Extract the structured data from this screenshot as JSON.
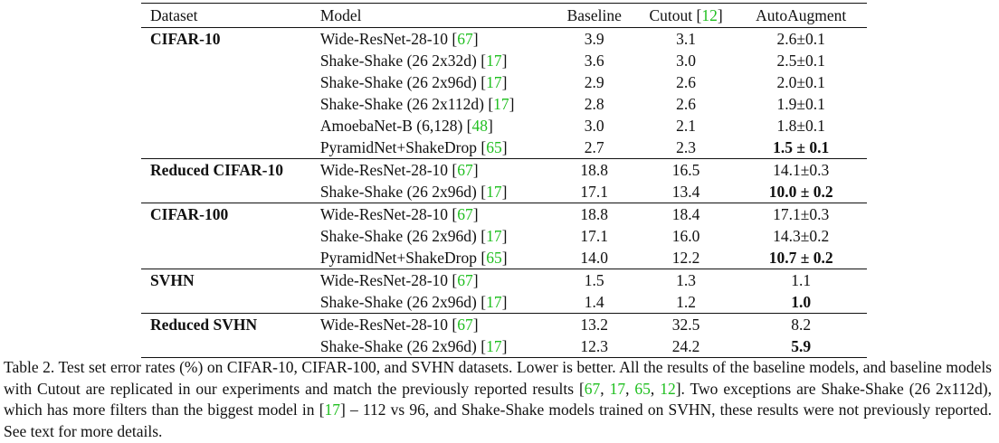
{
  "table": {
    "headers": {
      "dataset": "Dataset",
      "model": "Model",
      "baseline": "Baseline",
      "cutout": "Cutout [",
      "cutout_ref": "12",
      "cutout_close": "]",
      "autoaugment": "AutoAugment"
    },
    "groups": [
      {
        "dataset": "CIFAR-10",
        "rows": [
          {
            "model": "Wide-ResNet-28-10 [",
            "ref": "67",
            "close": "]",
            "baseline": "3.9",
            "cutout": "3.1",
            "auto": "2.6±0.1",
            "bold": false
          },
          {
            "model": "Shake-Shake (26 2x32d) [",
            "ref": "17",
            "close": "]",
            "baseline": "3.6",
            "cutout": "3.0",
            "auto": "2.5±0.1",
            "bold": false
          },
          {
            "model": "Shake-Shake (26 2x96d) [",
            "ref": "17",
            "close": "]",
            "baseline": "2.9",
            "cutout": "2.6",
            "auto": "2.0±0.1",
            "bold": false
          },
          {
            "model": "Shake-Shake (26 2x112d) [",
            "ref": "17",
            "close": "]",
            "baseline": "2.8",
            "cutout": "2.6",
            "auto": "1.9±0.1",
            "bold": false
          },
          {
            "model": "AmoebaNet-B (6,128) [",
            "ref": "48",
            "close": "]",
            "baseline": "3.0",
            "cutout": "2.1",
            "auto": "1.8±0.1",
            "bold": false
          },
          {
            "model": "PyramidNet+ShakeDrop [",
            "ref": "65",
            "close": "]",
            "baseline": "2.7",
            "cutout": "2.3",
            "auto": "1.5 ± 0.1",
            "bold": true
          }
        ]
      },
      {
        "dataset": "Reduced CIFAR-10",
        "rows": [
          {
            "model": "Wide-ResNet-28-10 [",
            "ref": "67",
            "close": "]",
            "baseline": "18.8",
            "cutout": "16.5",
            "auto": "14.1±0.3",
            "bold": false
          },
          {
            "model": "Shake-Shake (26 2x96d) [",
            "ref": "17",
            "close": "]",
            "baseline": "17.1",
            "cutout": "13.4",
            "auto": "10.0 ± 0.2",
            "bold": true
          }
        ]
      },
      {
        "dataset": "CIFAR-100",
        "rows": [
          {
            "model": "Wide-ResNet-28-10 [",
            "ref": "67",
            "close": "]",
            "baseline": "18.8",
            "cutout": "18.4",
            "auto": "17.1±0.3",
            "bold": false
          },
          {
            "model": "Shake-Shake (26 2x96d) [",
            "ref": "17",
            "close": "]",
            "baseline": "17.1",
            "cutout": "16.0",
            "auto": "14.3±0.2",
            "bold": false
          },
          {
            "model": "PyramidNet+ShakeDrop [",
            "ref": "65",
            "close": "]",
            "baseline": "14.0",
            "cutout": "12.2",
            "auto": "10.7 ± 0.2",
            "bold": true
          }
        ]
      },
      {
        "dataset": "SVHN",
        "rows": [
          {
            "model": "Wide-ResNet-28-10 [",
            "ref": "67",
            "close": "]",
            "baseline": "1.5",
            "cutout": "1.3",
            "auto": "1.1",
            "bold": false
          },
          {
            "model": "Shake-Shake (26 2x96d) [",
            "ref": "17",
            "close": "]",
            "baseline": "1.4",
            "cutout": "1.2",
            "auto": "1.0",
            "bold": true
          }
        ]
      },
      {
        "dataset": "Reduced SVHN",
        "rows": [
          {
            "model": "Wide-ResNet-28-10 [",
            "ref": "67",
            "close": "]",
            "baseline": "13.2",
            "cutout": "32.5",
            "auto": "8.2",
            "bold": false
          },
          {
            "model": "Shake-Shake (26 2x96d) [",
            "ref": "17",
            "close": "]",
            "baseline": "12.3",
            "cutout": "24.2",
            "auto": "5.9",
            "bold": true
          }
        ]
      }
    ]
  },
  "caption": {
    "part1": "Table 2. Test set error rates (%) on CIFAR-10, CIFAR-100, and SVHN datasets. Lower is better. All the results of the baseline models, and baseline models with Cutout are replicated in our experiments and match the previously reported results [",
    "ref1": "67",
    "sep1": ", ",
    "ref2": "17",
    "sep2": ", ",
    "ref3": "65",
    "sep3": ", ",
    "ref4": "12",
    "part2": "]. Two exceptions are Shake-Shake (26 2x112d), which has more filters than the biggest model in [",
    "ref5": "17",
    "part3": "] – 112 vs 96, and Shake-Shake models trained on SVHN, these results were not previously reported. See text for more details."
  },
  "colors": {
    "citation": "#1fbf1f",
    "text": "#111111"
  }
}
